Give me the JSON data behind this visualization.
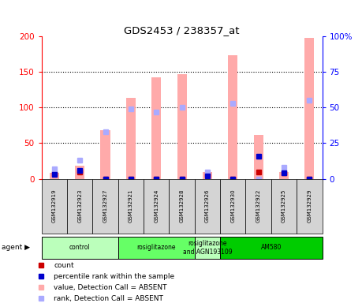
{
  "title": "GDS2453 / 238357_at",
  "samples": [
    "GSM132919",
    "GSM132923",
    "GSM132927",
    "GSM132921",
    "GSM132924",
    "GSM132928",
    "GSM132926",
    "GSM132930",
    "GSM132922",
    "GSM132925",
    "GSM132929"
  ],
  "count_values": [
    7,
    10,
    0,
    0,
    0,
    0,
    6,
    0,
    10,
    8,
    0
  ],
  "percentile_rank": [
    3,
    6,
    0,
    0,
    0,
    0,
    2,
    0,
    16,
    4,
    0
  ],
  "absent_value": [
    8,
    18,
    68,
    114,
    143,
    147,
    9,
    173,
    62,
    10,
    198
  ],
  "absent_rank": [
    7,
    13,
    33,
    49,
    47,
    50,
    5,
    53,
    0,
    8,
    55
  ],
  "ylim_left": [
    0,
    200
  ],
  "ylim_right": [
    0,
    100
  ],
  "yticks_left": [
    0,
    50,
    100,
    150,
    200
  ],
  "yticks_right": [
    0,
    25,
    50,
    75,
    100
  ],
  "yticklabels_right": [
    "0",
    "25",
    "50",
    "75",
    "100%"
  ],
  "agent_groups": [
    {
      "label": "control",
      "start": 0,
      "end": 3,
      "color": "#bbffbb"
    },
    {
      "label": "rosiglitazone",
      "start": 3,
      "end": 6,
      "color": "#66ff66"
    },
    {
      "label": "rosiglitazone\nand AGN193109",
      "start": 6,
      "end": 7,
      "color": "#bbffbb"
    },
    {
      "label": "AM580",
      "start": 7,
      "end": 11,
      "color": "#00cc00"
    }
  ],
  "count_color": "#cc0000",
  "percentile_color": "#0000cc",
  "absent_value_color": "#ffaaaa",
  "absent_rank_color": "#aaaaff",
  "bg_color": "#ffffff"
}
